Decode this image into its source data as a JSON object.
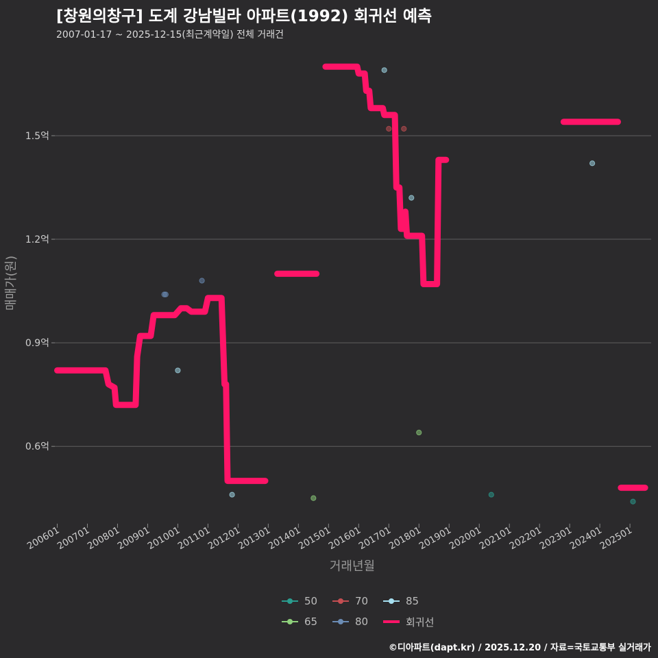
{
  "header": {
    "title": "[창원의창구] 도계 강남빌라 아파트(1992) 회귀선 예측",
    "subtitle": "2007-01-17 ~ 2025-12-15(최근계약일) 전체 거래건"
  },
  "caption": "©디아파트(dapt.kr) / 2025.12.20 / 자료=국토교통부 실거래가",
  "legend": [
    {
      "label": "50",
      "color": "#2a9d8f"
    },
    {
      "label": "70",
      "color": "#c44e52"
    },
    {
      "label": "85",
      "color": "#a6dff0"
    },
    {
      "label": "65",
      "color": "#8fd17c"
    },
    {
      "label": "80",
      "color": "#6b8cb5"
    },
    {
      "label": "회귀선",
      "color": "#ff1468"
    }
  ],
  "chart_data": {
    "type": "scatter",
    "title": "[창원의창구] 도계 강남빌라 아파트(1992) 회귀선 예측",
    "xlabel": "거래년월",
    "ylabel": "매매가(원)",
    "x_ticks": [
      "200601",
      "200701",
      "200801",
      "200901",
      "201001",
      "201101",
      "201201",
      "201301",
      "201401",
      "201501",
      "201601",
      "201701",
      "201801",
      "201901",
      "202001",
      "202101",
      "202201",
      "202301",
      "202401",
      "202501"
    ],
    "x_range": [
      2005.92,
      2025.93
    ],
    "y_ticks": [
      {
        "value": 0.6,
        "label": "0.6억"
      },
      {
        "value": 0.9,
        "label": "0.9억"
      },
      {
        "value": 1.2,
        "label": "1.2억"
      },
      {
        "value": 1.5,
        "label": "1.5억"
      }
    ],
    "y_range": [
      0.38,
      1.77
    ],
    "grid": "horizontal",
    "legend_position": "bottom",
    "series": [
      {
        "name": "50",
        "color": "#2a9d8f",
        "points": [
          [
            2020.4,
            0.46
          ],
          [
            2025.1,
            0.44
          ]
        ]
      },
      {
        "name": "65",
        "color": "#8fd17c",
        "points": [
          [
            2018.0,
            0.64
          ],
          [
            2014.5,
            0.45
          ]
        ]
      },
      {
        "name": "70",
        "color": "#c44e52",
        "points": [
          [
            2017.0,
            1.52
          ],
          [
            2017.5,
            1.52
          ]
        ]
      },
      {
        "name": "80",
        "color": "#6b8cb5",
        "points": [
          [
            2009.55,
            1.04
          ],
          [
            2009.6,
            1.04
          ],
          [
            2010.8,
            1.08
          ]
        ]
      },
      {
        "name": "85",
        "color": "#a6dff0",
        "points": [
          [
            2010.0,
            0.82
          ],
          [
            2016.85,
            1.69
          ],
          [
            2017.75,
            1.32
          ],
          [
            2023.75,
            1.42
          ],
          [
            2011.8,
            0.46
          ]
        ]
      }
    ],
    "regression": {
      "name": "회귀선",
      "color": "#ff1468",
      "segments": [
        [
          [
            2006.0,
            0.82
          ],
          [
            2007.6,
            0.82
          ],
          [
            2007.7,
            0.78
          ],
          [
            2007.9,
            0.77
          ],
          [
            2007.95,
            0.72
          ],
          [
            2008.6,
            0.72
          ],
          [
            2008.65,
            0.86
          ],
          [
            2008.75,
            0.92
          ],
          [
            2009.1,
            0.92
          ],
          [
            2009.2,
            0.98
          ],
          [
            2009.9,
            0.98
          ],
          [
            2010.0,
            0.99
          ],
          [
            2010.1,
            1.0
          ],
          [
            2010.3,
            1.0
          ],
          [
            2010.45,
            0.99
          ],
          [
            2010.9,
            0.99
          ],
          [
            2011.0,
            1.03
          ],
          [
            2011.45,
            1.03
          ],
          [
            2011.55,
            0.78
          ],
          [
            2011.6,
            0.78
          ],
          [
            2011.65,
            0.5
          ],
          [
            2012.9,
            0.5
          ]
        ],
        [
          [
            2013.3,
            1.1
          ],
          [
            2014.6,
            1.1
          ]
        ],
        [
          [
            2014.9,
            1.7
          ],
          [
            2015.95,
            1.7
          ],
          [
            2016.0,
            1.68
          ],
          [
            2016.2,
            1.68
          ],
          [
            2016.25,
            1.63
          ],
          [
            2016.35,
            1.63
          ],
          [
            2016.4,
            1.58
          ],
          [
            2016.8,
            1.58
          ],
          [
            2016.85,
            1.56
          ],
          [
            2017.2,
            1.56
          ],
          [
            2017.25,
            1.35
          ],
          [
            2017.35,
            1.35
          ],
          [
            2017.4,
            1.23
          ],
          [
            2017.5,
            1.23
          ],
          [
            2017.55,
            1.28
          ],
          [
            2017.6,
            1.21
          ],
          [
            2018.1,
            1.21
          ],
          [
            2018.15,
            1.07
          ],
          [
            2018.6,
            1.07
          ],
          [
            2018.65,
            1.43
          ],
          [
            2018.9,
            1.43
          ]
        ],
        [
          [
            2022.8,
            1.54
          ],
          [
            2024.6,
            1.54
          ]
        ],
        [
          [
            2024.7,
            0.48
          ],
          [
            2025.5,
            0.48
          ]
        ]
      ]
    }
  }
}
